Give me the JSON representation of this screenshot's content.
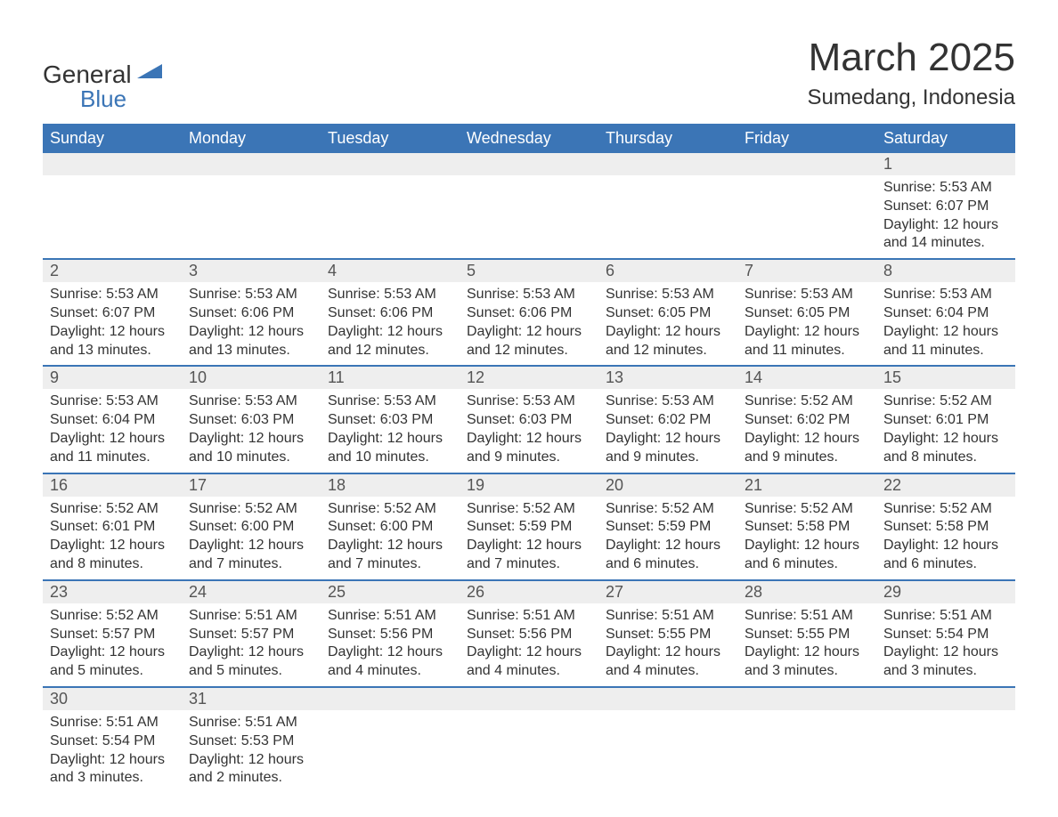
{
  "brand": {
    "name_part1": "General",
    "name_part2": "Blue",
    "logo_color": "#3b75b6"
  },
  "title": {
    "month_year": "March 2025",
    "location": "Sumedang, Indonesia"
  },
  "colors": {
    "header_bg": "#3b75b6",
    "header_text": "#ffffff",
    "daynum_bg": "#eeeeee",
    "daynum_text": "#555555",
    "body_text": "#333333",
    "row_divider": "#3b75b6",
    "page_bg": "#ffffff"
  },
  "fonts": {
    "base_family": "Arial",
    "month_title_size_pt": 33,
    "location_size_pt": 18,
    "dayhead_size_pt": 14,
    "daynum_size_pt": 14,
    "detail_size_pt": 12
  },
  "day_headers": [
    "Sunday",
    "Monday",
    "Tuesday",
    "Wednesday",
    "Thursday",
    "Friday",
    "Saturday"
  ],
  "weeks": [
    {
      "nums": [
        "",
        "",
        "",
        "",
        "",
        "",
        "1"
      ],
      "details": [
        "",
        "",
        "",
        "",
        "",
        "",
        "Sunrise: 5:53 AM\nSunset: 6:07 PM\nDaylight: 12 hours and 14 minutes."
      ]
    },
    {
      "nums": [
        "2",
        "3",
        "4",
        "5",
        "6",
        "7",
        "8"
      ],
      "details": [
        "Sunrise: 5:53 AM\nSunset: 6:07 PM\nDaylight: 12 hours and 13 minutes.",
        "Sunrise: 5:53 AM\nSunset: 6:06 PM\nDaylight: 12 hours and 13 minutes.",
        "Sunrise: 5:53 AM\nSunset: 6:06 PM\nDaylight: 12 hours and 12 minutes.",
        "Sunrise: 5:53 AM\nSunset: 6:06 PM\nDaylight: 12 hours and 12 minutes.",
        "Sunrise: 5:53 AM\nSunset: 6:05 PM\nDaylight: 12 hours and 12 minutes.",
        "Sunrise: 5:53 AM\nSunset: 6:05 PM\nDaylight: 12 hours and 11 minutes.",
        "Sunrise: 5:53 AM\nSunset: 6:04 PM\nDaylight: 12 hours and 11 minutes."
      ]
    },
    {
      "nums": [
        "9",
        "10",
        "11",
        "12",
        "13",
        "14",
        "15"
      ],
      "details": [
        "Sunrise: 5:53 AM\nSunset: 6:04 PM\nDaylight: 12 hours and 11 minutes.",
        "Sunrise: 5:53 AM\nSunset: 6:03 PM\nDaylight: 12 hours and 10 minutes.",
        "Sunrise: 5:53 AM\nSunset: 6:03 PM\nDaylight: 12 hours and 10 minutes.",
        "Sunrise: 5:53 AM\nSunset: 6:03 PM\nDaylight: 12 hours and 9 minutes.",
        "Sunrise: 5:53 AM\nSunset: 6:02 PM\nDaylight: 12 hours and 9 minutes.",
        "Sunrise: 5:52 AM\nSunset: 6:02 PM\nDaylight: 12 hours and 9 minutes.",
        "Sunrise: 5:52 AM\nSunset: 6:01 PM\nDaylight: 12 hours and 8 minutes."
      ]
    },
    {
      "nums": [
        "16",
        "17",
        "18",
        "19",
        "20",
        "21",
        "22"
      ],
      "details": [
        "Sunrise: 5:52 AM\nSunset: 6:01 PM\nDaylight: 12 hours and 8 minutes.",
        "Sunrise: 5:52 AM\nSunset: 6:00 PM\nDaylight: 12 hours and 7 minutes.",
        "Sunrise: 5:52 AM\nSunset: 6:00 PM\nDaylight: 12 hours and 7 minutes.",
        "Sunrise: 5:52 AM\nSunset: 5:59 PM\nDaylight: 12 hours and 7 minutes.",
        "Sunrise: 5:52 AM\nSunset: 5:59 PM\nDaylight: 12 hours and 6 minutes.",
        "Sunrise: 5:52 AM\nSunset: 5:58 PM\nDaylight: 12 hours and 6 minutes.",
        "Sunrise: 5:52 AM\nSunset: 5:58 PM\nDaylight: 12 hours and 6 minutes."
      ]
    },
    {
      "nums": [
        "23",
        "24",
        "25",
        "26",
        "27",
        "28",
        "29"
      ],
      "details": [
        "Sunrise: 5:52 AM\nSunset: 5:57 PM\nDaylight: 12 hours and 5 minutes.",
        "Sunrise: 5:51 AM\nSunset: 5:57 PM\nDaylight: 12 hours and 5 minutes.",
        "Sunrise: 5:51 AM\nSunset: 5:56 PM\nDaylight: 12 hours and 4 minutes.",
        "Sunrise: 5:51 AM\nSunset: 5:56 PM\nDaylight: 12 hours and 4 minutes.",
        "Sunrise: 5:51 AM\nSunset: 5:55 PM\nDaylight: 12 hours and 4 minutes.",
        "Sunrise: 5:51 AM\nSunset: 5:55 PM\nDaylight: 12 hours and 3 minutes.",
        "Sunrise: 5:51 AM\nSunset: 5:54 PM\nDaylight: 12 hours and 3 minutes."
      ]
    },
    {
      "nums": [
        "30",
        "31",
        "",
        "",
        "",
        "",
        ""
      ],
      "details": [
        "Sunrise: 5:51 AM\nSunset: 5:54 PM\nDaylight: 12 hours and 3 minutes.",
        "Sunrise: 5:51 AM\nSunset: 5:53 PM\nDaylight: 12 hours and 2 minutes.",
        "",
        "",
        "",
        "",
        ""
      ]
    }
  ]
}
